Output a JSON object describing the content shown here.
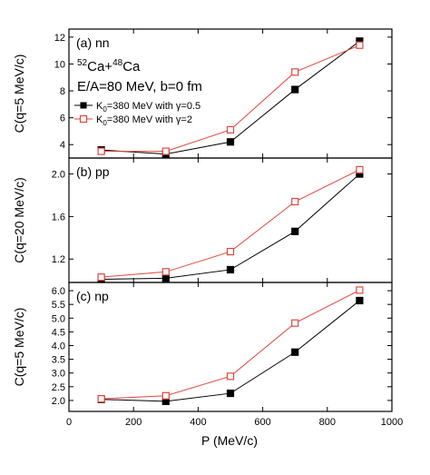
{
  "chart_data": {
    "type": "line",
    "x": [
      100,
      300,
      500,
      700,
      900
    ],
    "xlabel": "P (MeV/c)",
    "xlim": [
      0,
      1000
    ],
    "xticks": [
      0,
      200,
      400,
      600,
      800,
      1000
    ],
    "colors": {
      "series_a": "#000000",
      "series_b": "#e0463c"
    },
    "panels": [
      {
        "label": "(a) nn",
        "ylabel": "C(q=5 MeV/c)",
        "ylim": [
          3.0,
          12.6
        ],
        "yticks": [
          4,
          6,
          8,
          10,
          12
        ],
        "tick_decimals": 0,
        "series": [
          {
            "name": "K0=380 MeV with γ=0.5",
            "values": [
              3.6,
              3.3,
              4.2,
              8.1,
              11.7
            ]
          },
          {
            "name": "K0=380 MeV with γ=2",
            "values": [
              3.5,
              3.5,
              5.1,
              9.4,
              11.4
            ]
          }
        ]
      },
      {
        "label": "(b) pp",
        "ylabel": "C(q=20 MeV/c)",
        "ylim": [
          0.98,
          2.15
        ],
        "yticks": [
          1.2,
          1.6,
          2.0
        ],
        "tick_decimals": 1,
        "series": [
          {
            "name": "K0=380 MeV with γ=0.5",
            "values": [
              1.01,
              1.02,
              1.1,
              1.46,
              2.0
            ]
          },
          {
            "name": "K0=380 MeV with γ=2",
            "values": [
              1.03,
              1.08,
              1.27,
              1.74,
              2.04
            ]
          }
        ]
      },
      {
        "label": "(c) np",
        "ylabel": "C(q=5 MeV/c)",
        "ylim": [
          1.6,
          6.3
        ],
        "yticks": [
          2.0,
          2.5,
          3.0,
          3.5,
          4.0,
          4.5,
          5.0,
          5.5,
          6.0
        ],
        "tick_decimals": 1,
        "series": [
          {
            "name": "K0=380 MeV with γ=0.5",
            "values": [
              2.04,
              1.97,
              2.26,
              3.76,
              5.64
            ]
          },
          {
            "name": "K0=380 MeV with γ=2",
            "values": [
              2.06,
              2.17,
              2.88,
              4.82,
              6.02
            ]
          }
        ]
      }
    ],
    "annotation": {
      "reaction_pre": "52",
      "reaction_a": "Ca+",
      "reaction_mid": "48",
      "reaction_b": "Ca",
      "conditions": "E/A=80 MeV, b=0 fm"
    },
    "legend": [
      {
        "pre": "K",
        "sub": "0",
        "post": "=380 MeV with γ=0.5"
      },
      {
        "pre": "K",
        "sub": "0",
        "post": "=380 MeV with γ=2"
      }
    ]
  }
}
